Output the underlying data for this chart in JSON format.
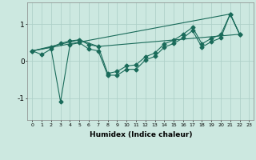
{
  "xlabel": "Humidex (Indice chaleur)",
  "bg_color": "#cce8e0",
  "line_color": "#1a6b5a",
  "grid_color": "#aacec6",
  "xlim": [
    -0.5,
    23.5
  ],
  "ylim": [
    -1.6,
    1.6
  ],
  "yticks": [
    -1,
    0,
    1
  ],
  "line1_x": [
    0,
    1,
    2,
    3,
    4,
    5,
    6,
    7,
    8,
    9,
    10,
    11,
    12,
    13,
    14,
    15,
    16,
    17,
    18,
    19,
    20,
    21,
    22
  ],
  "line1_y": [
    0.28,
    0.18,
    0.33,
    -1.1,
    0.45,
    0.5,
    0.33,
    0.28,
    -0.38,
    -0.38,
    -0.22,
    -0.22,
    0.03,
    0.13,
    0.38,
    0.48,
    0.63,
    0.83,
    0.38,
    0.53,
    0.63,
    1.28,
    0.73
  ],
  "line2_x": [
    0,
    2,
    3,
    4,
    5,
    6,
    7,
    8,
    9,
    10,
    11,
    12,
    13,
    14,
    15,
    16,
    17,
    18,
    19,
    20,
    21,
    22
  ],
  "line2_y": [
    0.28,
    0.38,
    0.48,
    0.55,
    0.58,
    0.45,
    0.4,
    -0.33,
    -0.28,
    -0.13,
    -0.1,
    0.12,
    0.22,
    0.47,
    0.57,
    0.73,
    0.92,
    0.47,
    0.62,
    0.72,
    1.28,
    0.73
  ],
  "line3_x": [
    0,
    21,
    22
  ],
  "line3_y": [
    0.28,
    1.28,
    0.73
  ],
  "line4_x": [
    0,
    5,
    7,
    22
  ],
  "line4_y": [
    0.28,
    0.58,
    0.4,
    0.73
  ]
}
